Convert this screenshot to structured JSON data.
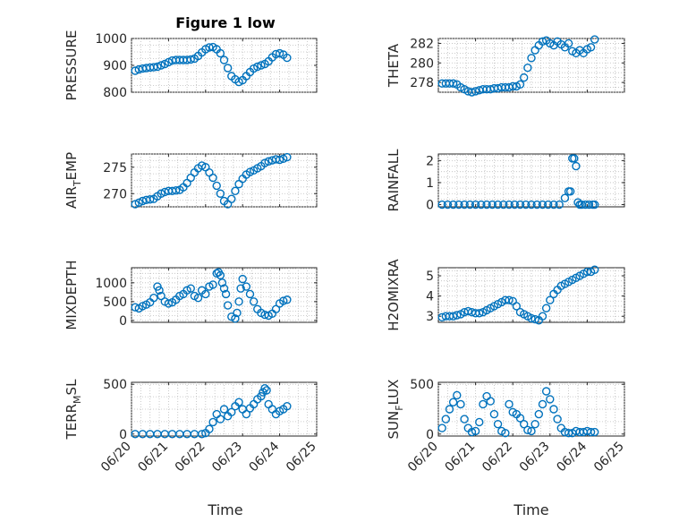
{
  "figure": {
    "title": "Figure 1 low",
    "xlabel": "Time"
  },
  "x_ticks": [
    "06/20",
    "06/21",
    "06/22",
    "06/23",
    "06/24",
    "06/25"
  ],
  "colors": {
    "marker": "#0072BD",
    "axes": "#262626",
    "grid": "#bdbdbd"
  },
  "chart_data": [
    {
      "type": "scatter",
      "ylabel": "PRESSURE",
      "ylabel_sub": null,
      "ylim": [
        800,
        1000
      ],
      "yticks": [
        800,
        900,
        1000
      ],
      "grid": true,
      "x": [
        0.1,
        0.2,
        0.3,
        0.4,
        0.5,
        0.6,
        0.7,
        0.8,
        0.9,
        1.0,
        1.1,
        1.2,
        1.3,
        1.4,
        1.5,
        1.6,
        1.7,
        1.8,
        1.9,
        2.0,
        2.1,
        2.2,
        2.3,
        2.4,
        2.5,
        2.6,
        2.7,
        2.8,
        2.9,
        3.0,
        3.1,
        3.2,
        3.3,
        3.4,
        3.5,
        3.6,
        3.7,
        3.8,
        3.9,
        4.0,
        4.1,
        4.2
      ],
      "y": [
        880,
        885,
        888,
        890,
        892,
        893,
        895,
        900,
        905,
        912,
        918,
        920,
        920,
        920,
        920,
        922,
        925,
        935,
        948,
        960,
        967,
        968,
        960,
        945,
        920,
        890,
        860,
        848,
        838,
        845,
        860,
        875,
        888,
        895,
        900,
        905,
        915,
        930,
        942,
        945,
        940,
        928
      ]
    },
    {
      "type": "scatter",
      "ylabel": "THETA",
      "ylabel_sub": null,
      "ylim": [
        277,
        282.5
      ],
      "yticks": [
        278,
        280,
        282
      ],
      "grid": true,
      "x": [
        0.1,
        0.2,
        0.3,
        0.4,
        0.5,
        0.6,
        0.7,
        0.8,
        0.9,
        1.0,
        1.1,
        1.2,
        1.3,
        1.4,
        1.5,
        1.6,
        1.7,
        1.8,
        1.9,
        2.0,
        2.1,
        2.2,
        2.3,
        2.4,
        2.5,
        2.6,
        2.7,
        2.8,
        2.9,
        3.0,
        3.1,
        3.2,
        3.3,
        3.4,
        3.5,
        3.6,
        3.7,
        3.8,
        3.9,
        4.0,
        4.1,
        4.2
      ],
      "y": [
        277.9,
        277.9,
        277.9,
        277.9,
        277.8,
        277.5,
        277.3,
        277.1,
        277.0,
        277.1,
        277.2,
        277.3,
        277.3,
        277.3,
        277.4,
        277.4,
        277.5,
        277.5,
        277.5,
        277.6,
        277.6,
        277.8,
        278.5,
        279.5,
        280.5,
        281.3,
        281.8,
        282.2,
        282.3,
        282.0,
        281.8,
        282.2,
        281.9,
        281.6,
        282.0,
        281.2,
        281.0,
        281.3,
        281.0,
        281.4,
        281.6,
        282.4
      ]
    },
    {
      "type": "scatter",
      "ylabel": "AIR",
      "ylabel_sub": "T",
      "ylabel_suffix": "EMP",
      "ylim": [
        267.5,
        277.5
      ],
      "yticks": [
        270,
        275
      ],
      "grid": true,
      "x": [
        0.1,
        0.2,
        0.3,
        0.4,
        0.5,
        0.6,
        0.7,
        0.8,
        0.9,
        1.0,
        1.1,
        1.2,
        1.3,
        1.4,
        1.5,
        1.6,
        1.7,
        1.8,
        1.9,
        2.0,
        2.1,
        2.2,
        2.3,
        2.4,
        2.5,
        2.6,
        2.7,
        2.8,
        2.9,
        3.0,
        3.1,
        3.2,
        3.3,
        3.4,
        3.5,
        3.6,
        3.7,
        3.8,
        3.9,
        4.0,
        4.1,
        4.2
      ],
      "y": [
        268.0,
        268.3,
        268.6,
        268.8,
        268.9,
        269.0,
        269.5,
        270.0,
        270.3,
        270.5,
        270.5,
        270.6,
        270.7,
        271.2,
        272.0,
        273.0,
        274.0,
        274.8,
        275.3,
        275.0,
        274.0,
        273.0,
        271.5,
        270.0,
        268.6,
        268.0,
        269.0,
        270.5,
        271.8,
        272.8,
        273.6,
        274.1,
        274.4,
        274.8,
        275.2,
        275.8,
        276.1,
        276.3,
        276.5,
        276.4,
        276.6,
        276.9
      ]
    },
    {
      "type": "scatter",
      "ylabel": "RAINFALL",
      "ylabel_sub": null,
      "ylim": [
        -0.1,
        2.3
      ],
      "yticks": [
        0,
        1,
        2
      ],
      "grid": true,
      "x": [
        0.1,
        0.25,
        0.4,
        0.55,
        0.7,
        0.85,
        1.0,
        1.15,
        1.3,
        1.45,
        1.6,
        1.75,
        1.9,
        2.05,
        2.2,
        2.35,
        2.5,
        2.65,
        2.8,
        2.95,
        3.1,
        3.25,
        3.4,
        3.5,
        3.55,
        3.6,
        3.65,
        3.7,
        3.75,
        3.8,
        3.85,
        3.95,
        4.05,
        4.15,
        4.2
      ],
      "y": [
        0,
        0,
        0,
        0,
        0,
        0,
        0,
        0,
        0,
        0,
        0,
        0,
        0,
        0,
        0,
        0,
        0,
        0,
        0,
        0,
        0,
        0,
        0.3,
        0.6,
        0.6,
        2.1,
        2.1,
        1.75,
        0.1,
        0,
        0,
        0,
        0,
        0,
        0
      ]
    },
    {
      "type": "scatter",
      "ylabel": "MIXDEPTH",
      "ylabel_sub": null,
      "ylim": [
        -50,
        1400
      ],
      "yticks": [
        0,
        500,
        1000
      ],
      "grid": true,
      "x": [
        0.1,
        0.2,
        0.3,
        0.4,
        0.5,
        0.6,
        0.7,
        0.75,
        0.8,
        0.9,
        1.0,
        1.1,
        1.2,
        1.3,
        1.4,
        1.5,
        1.6,
        1.7,
        1.8,
        1.9,
        2.0,
        2.1,
        2.2,
        2.3,
        2.35,
        2.4,
        2.45,
        2.5,
        2.55,
        2.6,
        2.7,
        2.8,
        2.85,
        2.9,
        2.95,
        3.0,
        3.1,
        3.2,
        3.3,
        3.4,
        3.5,
        3.6,
        3.7,
        3.8,
        3.9,
        4.0,
        4.1,
        4.2
      ],
      "y": [
        350,
        320,
        380,
        420,
        480,
        600,
        900,
        800,
        650,
        500,
        450,
        480,
        550,
        650,
        700,
        800,
        850,
        650,
        600,
        800,
        700,
        900,
        950,
        1250,
        1280,
        1200,
        1000,
        850,
        700,
        400,
        100,
        50,
        200,
        500,
        850,
        1100,
        900,
        700,
        500,
        300,
        200,
        150,
        130,
        180,
        300,
        450,
        520,
        550
      ]
    },
    {
      "type": "scatter",
      "ylabel": "H2OMIXRA",
      "ylabel_sub": null,
      "ylim": [
        2.7,
        5.4
      ],
      "yticks": [
        3,
        4,
        5
      ],
      "grid": true,
      "x": [
        0.1,
        0.2,
        0.3,
        0.4,
        0.5,
        0.6,
        0.7,
        0.8,
        0.9,
        1.0,
        1.1,
        1.2,
        1.3,
        1.4,
        1.5,
        1.6,
        1.7,
        1.8,
        1.9,
        2.0,
        2.1,
        2.2,
        2.3,
        2.4,
        2.5,
        2.6,
        2.7,
        2.8,
        2.9,
        3.0,
        3.1,
        3.2,
        3.3,
        3.4,
        3.5,
        3.6,
        3.7,
        3.8,
        3.9,
        4.0,
        4.1,
        4.2
      ],
      "y": [
        2.95,
        3.0,
        3.0,
        3.0,
        3.05,
        3.1,
        3.2,
        3.25,
        3.2,
        3.15,
        3.15,
        3.2,
        3.3,
        3.4,
        3.5,
        3.6,
        3.7,
        3.8,
        3.8,
        3.75,
        3.5,
        3.2,
        3.1,
        3.0,
        2.9,
        2.85,
        2.8,
        3.0,
        3.4,
        3.8,
        4.1,
        4.3,
        4.5,
        4.6,
        4.7,
        4.8,
        4.9,
        5.0,
        5.1,
        5.2,
        5.2,
        5.3
      ]
    },
    {
      "type": "scatter",
      "ylabel": "TERR",
      "ylabel_sub": "M",
      "ylabel_suffix": "SL",
      "ylim": [
        -20,
        520
      ],
      "yticks": [
        0,
        500
      ],
      "grid": true,
      "x": [
        0.1,
        0.3,
        0.5,
        0.7,
        0.9,
        1.1,
        1.3,
        1.5,
        1.7,
        1.9,
        2.0,
        2.1,
        2.2,
        2.3,
        2.4,
        2.5,
        2.6,
        2.7,
        2.8,
        2.9,
        3.0,
        3.1,
        3.2,
        3.3,
        3.4,
        3.5,
        3.55,
        3.6,
        3.65,
        3.7,
        3.8,
        3.9,
        4.0,
        4.1,
        4.2
      ],
      "y": [
        0,
        0,
        0,
        0,
        0,
        0,
        0,
        0,
        0,
        0,
        10,
        50,
        120,
        200,
        150,
        250,
        180,
        220,
        280,
        320,
        250,
        200,
        260,
        300,
        350,
        380,
        420,
        460,
        440,
        300,
        250,
        200,
        230,
        250,
        280
      ]
    },
    {
      "type": "scatter",
      "ylabel": "SUN",
      "ylabel_sub": "F",
      "ylabel_suffix": "LUX",
      "ylim": [
        -20,
        520
      ],
      "yticks": [
        0,
        500
      ],
      "grid": true,
      "x": [
        0.1,
        0.2,
        0.3,
        0.4,
        0.5,
        0.6,
        0.7,
        0.8,
        0.9,
        1.0,
        1.1,
        1.2,
        1.3,
        1.4,
        1.5,
        1.6,
        1.7,
        1.8,
        1.9,
        2.0,
        2.1,
        2.2,
        2.3,
        2.4,
        2.5,
        2.6,
        2.7,
        2.8,
        2.9,
        3.0,
        3.1,
        3.2,
        3.3,
        3.4,
        3.5,
        3.6,
        3.7,
        3.8,
        3.9,
        4.0,
        4.1,
        4.2
      ],
      "y": [
        60,
        150,
        250,
        320,
        390,
        300,
        150,
        60,
        20,
        30,
        120,
        300,
        380,
        330,
        200,
        100,
        30,
        10,
        300,
        220,
        200,
        160,
        100,
        40,
        30,
        100,
        200,
        300,
        430,
        350,
        250,
        150,
        60,
        20,
        10,
        10,
        30,
        20,
        20,
        30,
        20,
        20
      ]
    }
  ]
}
